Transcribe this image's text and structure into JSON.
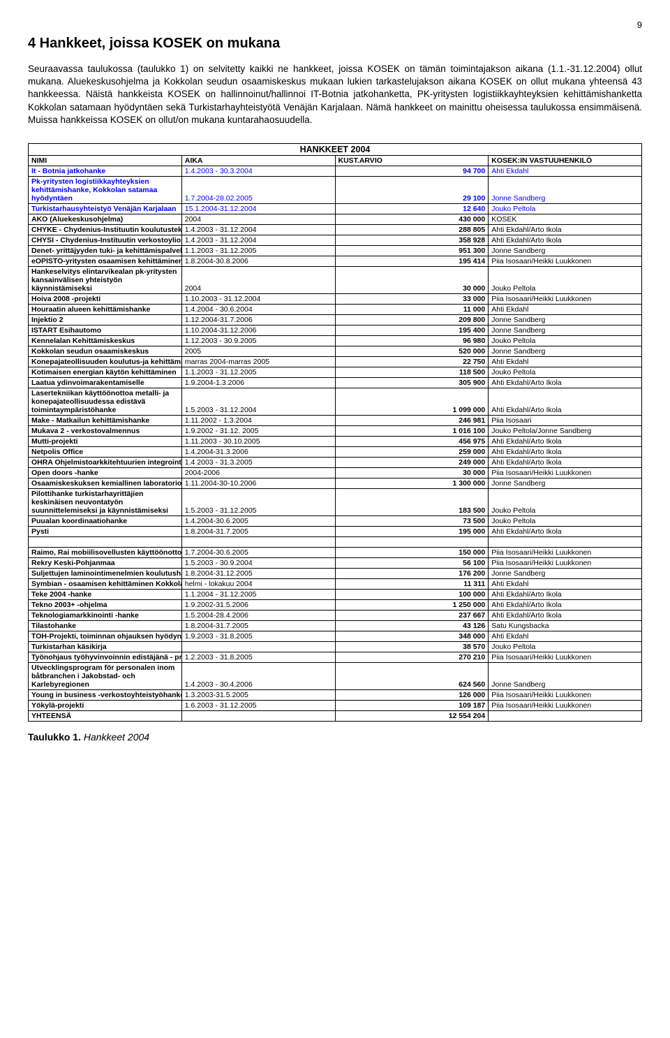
{
  "page_number": "9",
  "heading": "4 Hankkeet, joissa KOSEK on mukana",
  "paragraph": "Seuraavassa taulukossa (taulukko 1) on selvitetty kaikki ne hankkeet, joissa KOSEK on tämän toimintajakson aikana (1.1.-31.12.2004) ollut mukana. Aluekeskusohjelma ja Kokkolan seudun osaamiskeskus mukaan lukien tarkastelujakson aikana KOSEK on ollut mukana yhteensä 43 hankkeessa. Näistä hankkeista KOSEK on hallinnoinut/hallinnoi IT-Botnia jatkohanketta, PK-yritysten logistiikkayhteyksien kehittämishanketta Kokkolan satamaan hyödyntäen sekä Turkistarhayhteistyötä Venäjän Karjalaan. Nämä hankkeet on mainittu oheisessa taulukossa ensimmäisenä. Muissa hankkeissa KOSEK on ollut/on mukana kuntarahaosuudella.",
  "table_title": "HANKKEET 2004",
  "columns": {
    "nimi": "NIMI",
    "aika": "AIKA",
    "kust": "KUST.ARVIO",
    "vast": "KOSEK:IN VASTUUHENKILÖ"
  },
  "total_label": "YHTEENSÄ",
  "total_value": "12 554 204",
  "caption_label": "Taulukko 1.",
  "caption_text": "Hankkeet 2004",
  "rows": [
    {
      "name": "It - Botnia jatkohanke",
      "aika": "1.4.2003 - 30.3.2004",
      "kust": "94 700",
      "vast": "Ahti Ekdahl",
      "blue": true
    },
    {
      "name": "Pk-yritysten logistiikkayhteyksien kehittämishanke, Kokkolan satamaa hyödyntäen",
      "aika": "1.7.2004-28.02.2005",
      "kust": "29 100",
      "vast": "Jonne Sandberg",
      "blue": true,
      "twoLine": true
    },
    {
      "name": "Turkistarhausyhteistyö Venäjän Karjalaan",
      "aika": "15.1.2004-31.12.2004",
      "kust": "12 640",
      "vast": "Jouko Peltola",
      "blue": true
    },
    {
      "name": "AKO (Aluekeskusohjelma)",
      "aika": "2004",
      "kust": "430 000",
      "vast": "KOSEK"
    },
    {
      "name": "CHYKE - Chydenius-Instituutin koulutusteknologiapalveluiden hanke",
      "aika": "1.4.2003 - 31.12.2004",
      "kust": "288 805",
      "vast": "Ahti Ekdahl/Arto Ikola"
    },
    {
      "name": "CHYSI - Chydenius-Instituutin verkostoyliopiston sisältötuotantohanke",
      "aika": "1.4.2003 - 31.12.2004",
      "kust": "358 928",
      "vast": "Ahti Ekdahl/Arto Ikola"
    },
    {
      "name": "Denet- yrittäjyyden tuki- ja kehittämispalveluympäristö",
      "aika": "1.1.2003 - 31.12.2005",
      "kust": "951 300",
      "vast": "Jonne Sandberg"
    },
    {
      "name": "eOPISTO-yritysten osaamisen kehittäminen verkkoympäristössä",
      "aika": "1.8.2004-30.8.2006",
      "kust": "195 414",
      "vast": "Piia Isosaari/Heikki Luukkonen"
    },
    {
      "name": "Hankeselvitys elintarvikealan pk-yritysten kansainvälisen yhteistyön käynnistämiseksi",
      "aika": "2004",
      "kust": "30 000",
      "vast": "Jouko Peltola",
      "twoLine": true
    },
    {
      "name": "Hoiva 2008 -projekti",
      "aika": "1.10.2003 - 31.12.2004",
      "kust": "33 000",
      "vast": "Piia Isosaari/Heikki Luukkonen"
    },
    {
      "name": "Houraatin alueen kehittämishanke",
      "aika": "1.4.2004 - 30.6.2004",
      "kust": "11 000",
      "vast": "Ahti Ekdahl"
    },
    {
      "name": "Injektio 2",
      "aika": "1.12.2004-31.7.2006",
      "kust": "209 800",
      "vast": "Jonne Sandberg"
    },
    {
      "name": "ISTART Esihautomo",
      "aika": "1.10.2004-31.12.2006",
      "kust": "195 400",
      "vast": "Jonne Sandberg"
    },
    {
      "name": "Kennelalan Kehittämiskeskus",
      "aika": "1.12.2003 - 30.9.2005",
      "kust": "96 980",
      "vast": "Jouko Peltola"
    },
    {
      "name": "Kokkolan seudun osaamiskeskus",
      "aika": "2005",
      "kust": "520 000",
      "vast": "Jonne Sandberg"
    },
    {
      "name": "Konepajateollisuuden koulutus-ja kehittämisympäristö",
      "aika": "marras 2004-marras 2005",
      "kust": "22 750",
      "vast": "Ahti Ekdahl"
    },
    {
      "name": "Kotimaisen energian käytön kehittäminen",
      "aika": "1.1.2003 - 31.12.2005",
      "kust": "118 500",
      "vast": "Jouko Peltola"
    },
    {
      "name": "Laatua ydinvoimarakentamiselle",
      "aika": "1.9.2004-1.3.2006",
      "kust": "305 900",
      "vast": "Ahti Ekdahl/Arto Ikola"
    },
    {
      "name": "Lasertekniikan käyttöönottoa metalli- ja konepajateollisuudessa edistävä toimintaympäristöhanke",
      "aika": "1.5.2003 - 31.12.2004",
      "kust": "1 099 000",
      "vast": "Ahti Ekdahl/Arto Ikola",
      "twoLine": true
    },
    {
      "name": "Make - Matkailun kehittämishanke",
      "aika": "1.11.2002 - 1.3.2004",
      "kust": "246 981",
      "vast": "Piia Isosaari"
    },
    {
      "name": "Mukava 2 - verkostovalmennus",
      "aika": "1.9.2002 - 31.12. 2005",
      "kust": "1 016 100",
      "vast": "Jouko Peltola/Jonne Sandberg"
    },
    {
      "name": "Mutti-projekti",
      "aika": "1.11.2003 - 30.10.2005",
      "kust": "456 975",
      "vast": "Ahti Ekdahl/Arto Ikola"
    },
    {
      "name": "Netpolis Office",
      "aika": "1.4.2004-31.3.2006",
      "kust": "259 000",
      "vast": "Ahti Ekdahl/Arto Ikola"
    },
    {
      "name": "OHRA Ohjelmistoarkkitehtuurien integrointi ohjelmistotuotantoon",
      "aika": "1.4 2003 - 31.3.2005",
      "kust": "249 000",
      "vast": "Ahti Ekdahl/Arto Ikola"
    },
    {
      "name": "Open doors -hanke",
      "aika": "2004-2006",
      "kust": "30 000",
      "vast": "Piia Isosaari/Heikki Luukkonen"
    },
    {
      "name": "Osaamiskeskuksen kemiallinen laboratorio",
      "aika": "1.11.2004-30-10.2006",
      "kust": "1 300 000",
      "vast": "Jonne Sandberg"
    },
    {
      "name": "Pilottihanke turkistarhayrittäjien keskinäisen neuvontatyön suunnittelemiseksi ja käynnistämiseksi",
      "aika": "1.5.2003 - 31.12.2005",
      "kust": "183 500",
      "vast": "Jouko Peltola",
      "twoLine": true
    },
    {
      "name": "Puualan koordinaatiohanke",
      "aika": "1.4.2004-30.6.2005",
      "kust": "73 500",
      "vast": "Jouko Peltola"
    },
    {
      "name": "Pysti",
      "aika": "1.8.2004-31.7.2005",
      "kust": "195 000",
      "vast": "Ahti Ekdahl/Arto Ikola"
    },
    {
      "spacer": true
    },
    {
      "name": "Raimo, Rai mobiilisovellusten käyttöönotto Kokkolan vanhustenhuollossa",
      "aika": "1.7.2004-30.6.2005",
      "kust": "150 000",
      "vast": "Piia Isosaari/Heikki Luukkonen"
    },
    {
      "name": "Rekry Keski-Pohjanmaa",
      "aika": "1.5.2003 - 30.9.2004",
      "kust": "56 100",
      "vast": "Piia Isosaari/Heikki Luukkonen"
    },
    {
      "name": "Suljettujen laminointimenelmien koulutushanke",
      "aika": "1.8.2004-31.12.2005",
      "kust": "176 200",
      "vast": "Jonne Sandberg"
    },
    {
      "name": "Symbian - osaamisen kehittäminen Kokkolanseudulla",
      "aika": "helmi - lokakuu 2004",
      "kust": "11 311",
      "vast": "Ahti Ekdahl"
    },
    {
      "name": "Teke 2004 -hanke",
      "aika": "1.1.2004 - 31.12.2005",
      "kust": "100 000",
      "vast": "Ahti Ekdahl/Arto Ikola"
    },
    {
      "name": "Tekno 2003+ -ohjelma",
      "aika": "1.9.2002-31.5.2006",
      "kust": "1 250 000",
      "vast": "Ahti Ekdahl/Arto Ikola"
    },
    {
      "name": "Teknologiamarkkinointi -hanke",
      "aika": "1.5.2004-28.4.2006",
      "kust": "237 667",
      "vast": "Ahti Ekdahl/Arto Ikola"
    },
    {
      "name": "Tilastohanke",
      "aika": "1.8.2004-31.7.2005",
      "kust": "43 126",
      "vast": "Satu Kungsbacka"
    },
    {
      "name": "TOH-Projekti, toiminnan ohjauksen hyödyntäminen pk-yrityksissä",
      "aika": "1.9.2003 - 31.8.2005",
      "kust": "348 000",
      "vast": "Ahti Ekdahl"
    },
    {
      "name": "Turkistarhan käsikirja",
      "aika": "",
      "kust": "38 570",
      "vast": "Jouko Peltola"
    },
    {
      "name": "Työnohjaus työhyvinvoinnin edistäjänä - projekti",
      "aika": "1.2.2003 - 31.8.2005",
      "kust": "270 210",
      "vast": "Piia Isosaari/Heikki Luukkonen"
    },
    {
      "name": "Utvecklingsprogram för personalen inom båtbranchen i Jakobstad- och Karlebyregionen",
      "aika": "1.4.2003 - 30.4.2006",
      "kust": "624 560",
      "vast": "Jonne Sandberg",
      "twoLine": true
    },
    {
      "name": "Young in business -verkostoyhteistyöhanke",
      "aika": "1.3.2003-31.5.2005",
      "kust": "126 000",
      "vast": "Piia Isosaari/Heikki Luukkonen"
    },
    {
      "name": "Yökylä-projekti",
      "aika": "1.6.2003 - 31.12.2005",
      "kust": "109 187",
      "vast": "Piia Isosaari/Heikki Luukkonen"
    }
  ]
}
